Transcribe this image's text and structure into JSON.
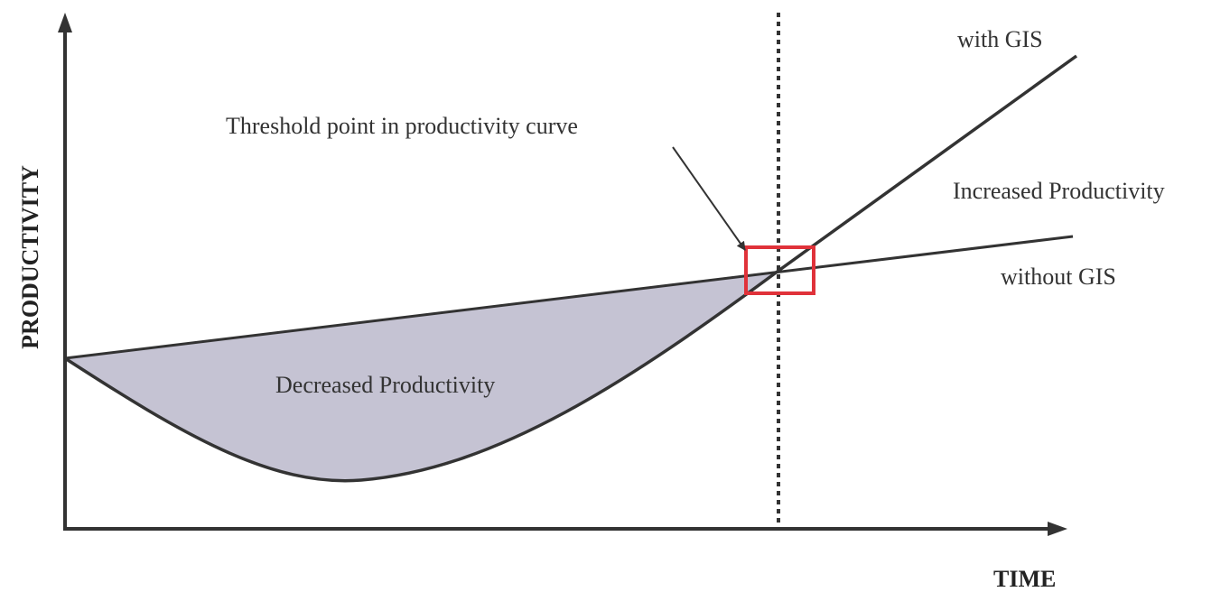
{
  "axes": {
    "y_label": "PRODUCTIVITY",
    "x_label": "TIME"
  },
  "labels": {
    "with_gis": "with GIS",
    "without_gis": "without GIS",
    "increased": "Increased Productivity",
    "decreased": "Decreased Productivity",
    "threshold": "Threshold point in productivity curve"
  }
}
